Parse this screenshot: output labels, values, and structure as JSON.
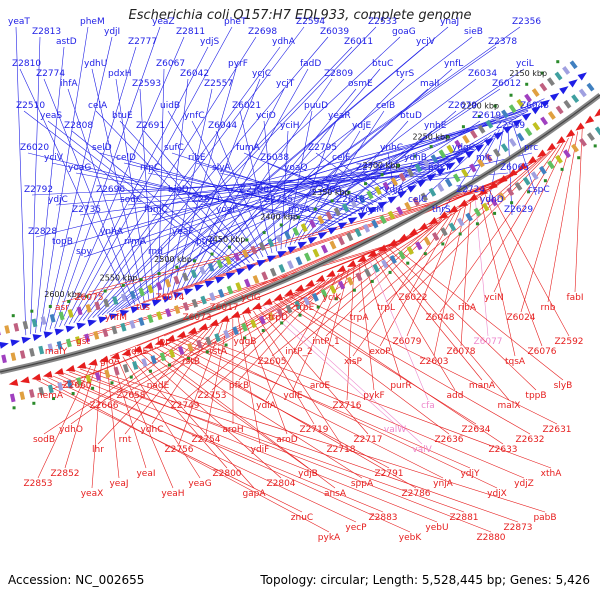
{
  "title": "Escherichia coli O157:H7 EDL933, complete genome",
  "footer": {
    "accession": "Accession: NC_002655",
    "summary": "Topology: circular; Length: 5,528,445 bp; Genes: 5,426"
  },
  "colors": {
    "forward": "#1e1ee6",
    "reverse": "#e61e1e",
    "pink": "#ee88cc",
    "backbone": "#888888",
    "gc_marker": "#2a8a2a"
  },
  "ticks": [
    "2150 kbp",
    "2200 kbp",
    "2250 kbp",
    "2300 kbp",
    "2350 kbp",
    "2400 kbp",
    "2450 kbp",
    "2500 kbp",
    "2550 kbp",
    "2600 kbp"
  ],
  "forward_labels": [
    "yeaT",
    "Z2813",
    "astD",
    "pheM",
    "ydjI",
    "Z2777",
    "yeaZ",
    "Z2811",
    "ydjS",
    "pheT",
    "Z2698",
    "ydhA",
    "Z2594",
    "Z6039",
    "Z6011",
    "Z2533",
    "goaG",
    "ycjV",
    "ynaJ",
    "sieB",
    "Z2378",
    "Z2356",
    "Z2810",
    "Z2774",
    "ihfA",
    "ydhU",
    "pdxH",
    "Z2593",
    "Z6067",
    "Z6042",
    "Z2557",
    "pyrF",
    "ycjC",
    "ycjT",
    "fadD",
    "Z2809",
    "osmE",
    "btuC",
    "tyrS",
    "malI",
    "ynfL",
    "Z6034",
    "Z6012",
    "yciL",
    "Z2510",
    "yeaS",
    "Z2808",
    "celA",
    "btuE",
    "Z2691",
    "uidB",
    "ynfC",
    "Z6044",
    "Z6021",
    "yciO",
    "yciH",
    "puuD",
    "yeaR",
    "ydjE",
    "celB",
    "btuD",
    "ynhE",
    "Z2679",
    "Z2619",
    "Z2569",
    "Z6043",
    "Z6020",
    "yciV",
    "yoaG",
    "selD",
    "celD",
    "nlpC",
    "sufC",
    "ribE",
    "slyA",
    "fumA",
    "Z6038",
    "yoaQ",
    "Z2795",
    "celF",
    "Z2736",
    "ynhC",
    "ydhB",
    "pdxY",
    "ydgC",
    "mlc",
    "Z6065",
    "prc",
    "Z2792",
    "ydjC",
    "Z2735",
    "Z2696",
    "sodC",
    "fumC",
    "bioD",
    "Z2871",
    "yoaF",
    "Z2790",
    "Z2755",
    "ppsA",
    "Z2703",
    "Z2618",
    "yoaM",
    "ydjA",
    "celC",
    "thrS",
    "Z2724",
    "ydhD",
    "Z2629",
    "cspC",
    "Z2828",
    "topB",
    "spy",
    "ynhA",
    "rrmA",
    "rnd",
    "yeaF",
    "ptrB"
  ],
  "reverse_labels": [
    "fabI",
    "rnb",
    "Z6024",
    "yciN",
    "ribA",
    "Z6048",
    "Z6022",
    "trpL",
    "trpA",
    "yciK",
    "trpE",
    "trpD",
    "yciG",
    "Z6017",
    "Z6073",
    "Z6074",
    "tus",
    "ynfM",
    "Z6075",
    "asr",
    "Z2592",
    "Z6076",
    "tqsA",
    "Z6077",
    "Z6078",
    "Z2603",
    "Z6079",
    "exoP",
    "xisP",
    "intP_1",
    "intP_2",
    "Z2605",
    "ydgB",
    "rstA",
    "rstB",
    "lpp",
    "ydhE",
    "gloA",
    "gst",
    "malY",
    "slyB",
    "tppB",
    "malX",
    "manA",
    "add",
    "cfa",
    "purR",
    "pykF",
    "Z2716",
    "aroE",
    "ydiE",
    "ydiA",
    "pfkB",
    "Z2753",
    "Z2749",
    "nadE",
    "Z2658",
    "Z2666",
    "Z2660",
    "nemA",
    "Z2631",
    "Z2632",
    "Z2633",
    "Z2634",
    "Z2636",
    "valV",
    "valW",
    "Z2717",
    "Z2718",
    "Z2719",
    "aroD",
    "ydiF",
    "aroH",
    "Z2754",
    "Z2756",
    "ydhC",
    "rnt",
    "lhr",
    "ydhO",
    "sodB",
    "xthA",
    "ydjZ",
    "ydjX",
    "ydjY",
    "ynjA",
    "Z2786",
    "Z2791",
    "sppA",
    "ansA",
    "ydjB",
    "Z2804",
    "gapA",
    "Z2800",
    "yeaG",
    "yeaH",
    "yeaI",
    "yeaJ",
    "yeaX",
    "Z2852",
    "Z2853",
    "pabB",
    "Z2873",
    "Z2880",
    "Z2881",
    "yebU",
    "yebK",
    "Z2883",
    "yecP",
    "pykA",
    "znuC"
  ]
}
